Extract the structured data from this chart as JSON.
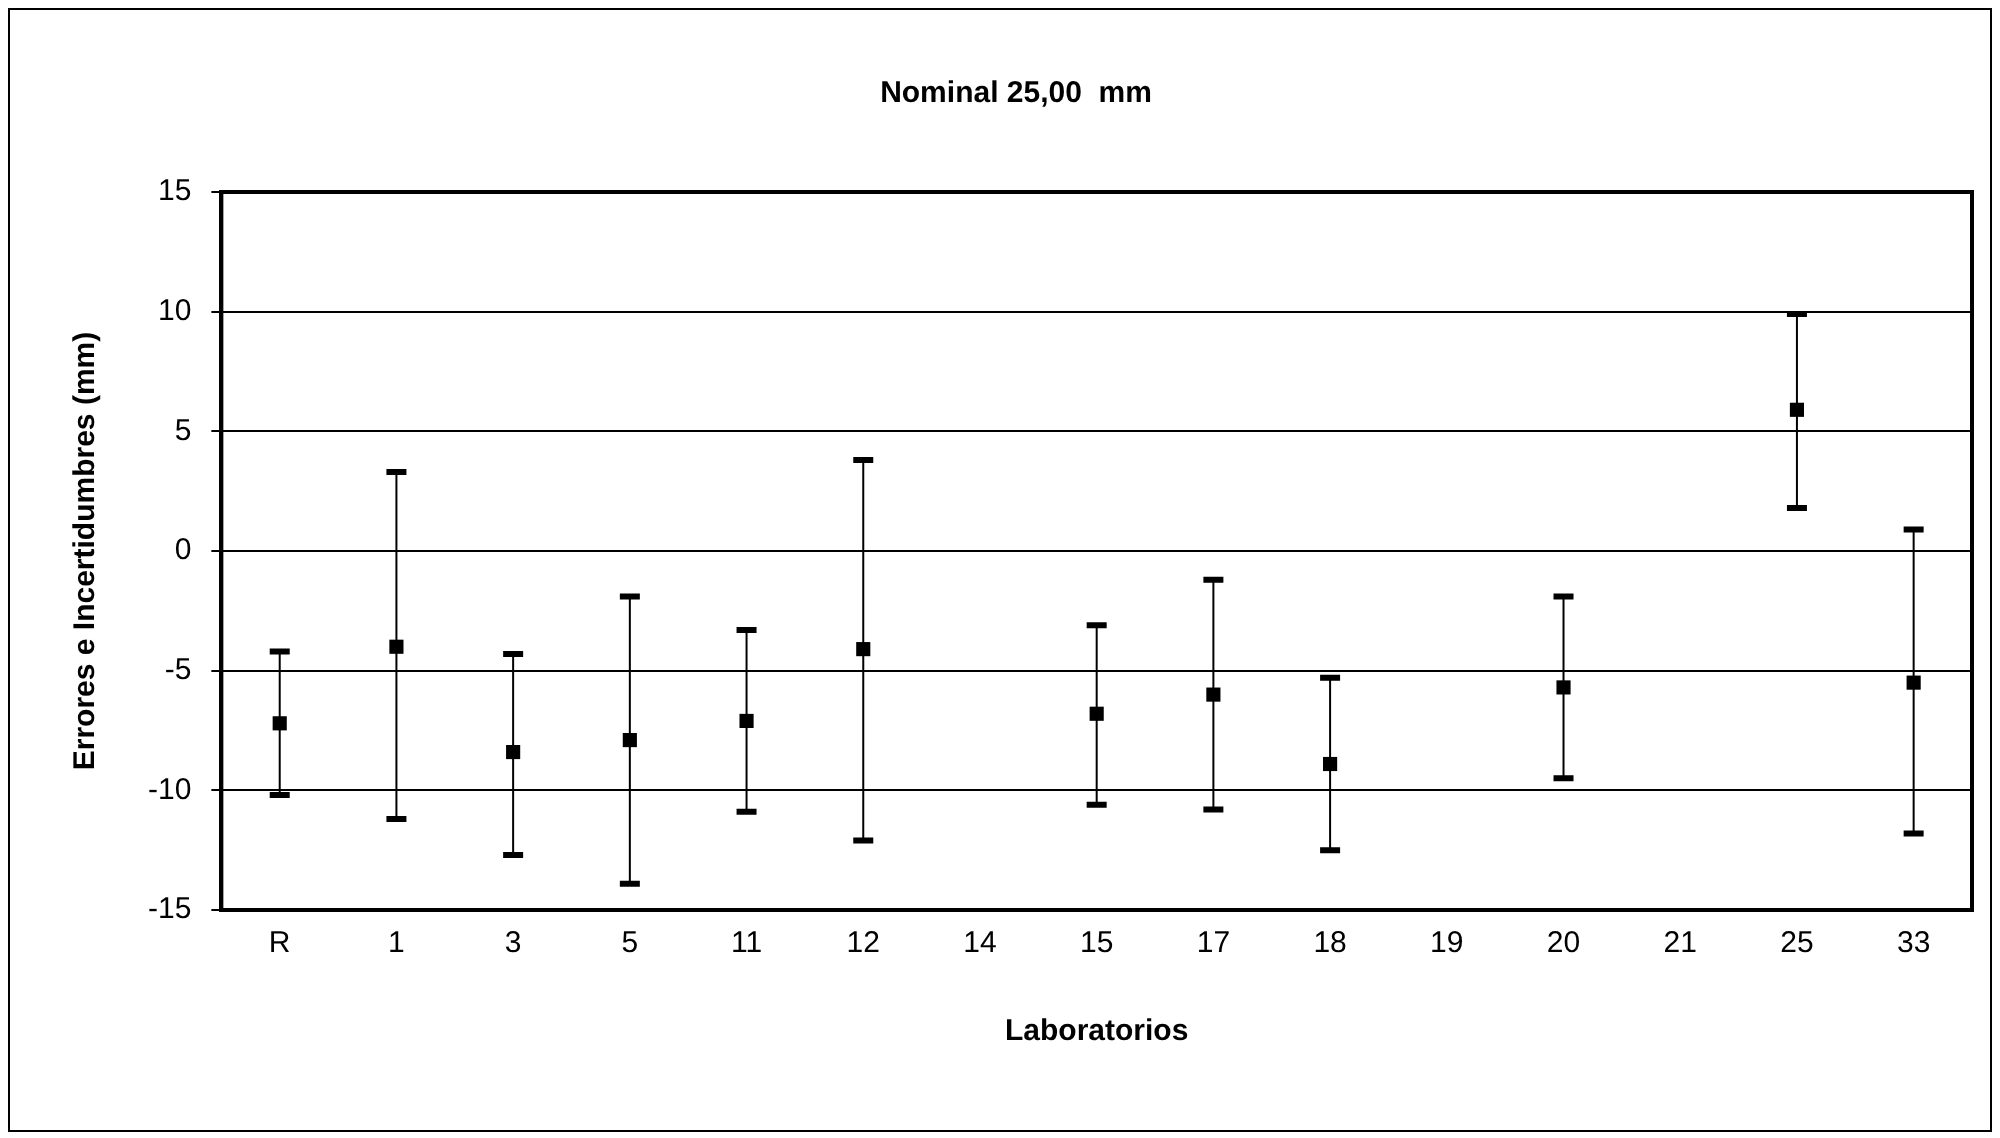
{
  "chart_data": {
    "type": "scatter",
    "title": "Nominal 25,00  mm",
    "xlabel": "Laboratorios",
    "ylabel": "Errores e Incertidumbres (mm)",
    "categories": [
      "R",
      "1",
      "3",
      "5",
      "11",
      "12",
      "14",
      "15",
      "17",
      "18",
      "19",
      "20",
      "21",
      "25",
      "33"
    ],
    "series": [
      {
        "color": "#000000",
        "values": [
          -7.2,
          -4.0,
          -8.4,
          -7.9,
          -7.1,
          -4.1,
          null,
          -6.8,
          -6.0,
          -8.9,
          null,
          -5.7,
          null,
          5.9,
          -5.5
        ],
        "errors": [
          [
            -10.2,
            -4.2
          ],
          [
            -11.2,
            3.3
          ],
          [
            -12.7,
            -4.3
          ],
          [
            -13.9,
            -1.9
          ],
          [
            -10.9,
            -3.3
          ],
          [
            -12.1,
            3.8
          ],
          null,
          [
            -10.6,
            -3.1
          ],
          [
            -10.8,
            -1.2
          ],
          [
            -12.5,
            -5.3
          ],
          null,
          [
            -9.5,
            -1.9
          ],
          null,
          [
            1.8,
            9.9
          ],
          [
            -11.8,
            0.9
          ]
        ]
      }
    ],
    "ylim": [
      -15,
      15
    ],
    "yticks": [
      -15,
      -10,
      -5,
      0,
      5,
      10,
      15
    ],
    "grid": "y",
    "marker": "square",
    "legend": false
  }
}
